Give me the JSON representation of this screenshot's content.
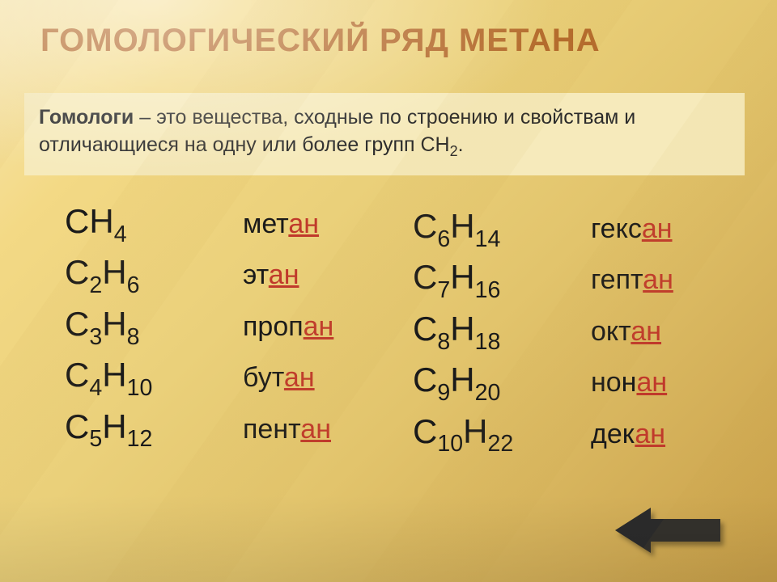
{
  "title": {
    "text": "ГОМОЛОГИЧЕСКИЙ РЯД МЕТАНА",
    "color": "#b46a2c",
    "fontsize": 40,
    "fontweight": "600"
  },
  "definition": {
    "lead": "Гомологи",
    "rest": " – это вещества, сходные по строению и свойствам и отличающиеся на одну или более групп СН",
    "sub": "2",
    "tail": ".",
    "background": "#f6eabb",
    "color": "#2b2b2b",
    "fontsize": 25,
    "lead_fontweight": "700"
  },
  "series": {
    "formula_color": "#1a1a1a",
    "formula_fontsize": 42,
    "name_color": "#1a1a1a",
    "name_fontsize": 34,
    "suffix_color": "#c0392b",
    "left": [
      {
        "letters": [
          "C",
          "H"
        ],
        "subs": [
          "",
          "4"
        ],
        "stem": "мет",
        "suffix": "ан"
      },
      {
        "letters": [
          "C",
          "H"
        ],
        "subs": [
          "2",
          "6"
        ],
        "stem": "эт",
        "suffix": "ан"
      },
      {
        "letters": [
          "C",
          "H"
        ],
        "subs": [
          "3",
          "8"
        ],
        "stem": "проп",
        "suffix": "ан"
      },
      {
        "letters": [
          "C",
          "H"
        ],
        "subs": [
          "4",
          "10"
        ],
        "stem": "бут",
        "suffix": "ан"
      },
      {
        "letters": [
          "C",
          "H"
        ],
        "subs": [
          "5",
          "12"
        ],
        "stem": "пент",
        "suffix": "ан"
      }
    ],
    "right": [
      {
        "letters": [
          "C",
          "H"
        ],
        "subs": [
          "6",
          "14"
        ],
        "stem": "гекс",
        "suffix": "ан"
      },
      {
        "letters": [
          "C",
          "H"
        ],
        "subs": [
          "7",
          "16"
        ],
        "stem": "гепт",
        "suffix": "ан"
      },
      {
        "letters": [
          "C",
          "H"
        ],
        "subs": [
          "8",
          "18"
        ],
        "stem": "окт",
        "suffix": "ан"
      },
      {
        "letters": [
          "C",
          "H"
        ],
        "subs": [
          "9",
          "20"
        ],
        "stem": "нон",
        "suffix": "ан"
      },
      {
        "letters": [
          "C",
          "H"
        ],
        "subs": [
          "10",
          "22"
        ],
        "stem": "дек",
        "suffix": "ан"
      }
    ]
  },
  "arrow": {
    "fill": "#2b2b2b",
    "width": 130,
    "height": 56
  }
}
